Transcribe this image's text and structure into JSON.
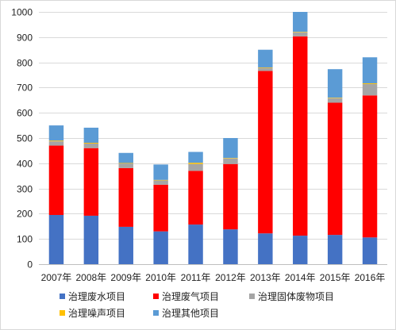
{
  "chart_data": {
    "type": "bar",
    "stacked": true,
    "categories": [
      "2007年",
      "2008年",
      "2009年",
      "2010年",
      "2011年",
      "2012年",
      "2013年",
      "2014年",
      "2015年",
      "2016年"
    ],
    "ylim": [
      0,
      1000
    ],
    "yticks": [
      0,
      100,
      200,
      300,
      400,
      500,
      600,
      700,
      800,
      900,
      1000
    ],
    "grid": true,
    "legend_position": "bottom",
    "series": [
      {
        "name": "治理废水项目",
        "color": "#4472c4",
        "values": [
          195,
          192,
          148,
          130,
          157,
          138,
          122,
          113,
          116,
          106
        ]
      },
      {
        "name": "治理废气项目",
        "color": "#ff0000",
        "values": [
          275,
          268,
          233,
          185,
          213,
          259,
          644,
          790,
          524,
          563
        ]
      },
      {
        "name": "治理固体废物项目",
        "color": "#a5a5a5",
        "values": [
          17,
          18,
          18,
          17,
          27,
          22,
          12,
          16,
          18,
          45
        ]
      },
      {
        "name": "治理噪声项目",
        "color": "#ffc000",
        "values": [
          3,
          3,
          2,
          2,
          5,
          2,
          2,
          2,
          2,
          3
        ]
      },
      {
        "name": "治理其他项目",
        "color": "#5b9bd5",
        "values": [
          60,
          60,
          40,
          61,
          43,
          79,
          70,
          79,
          113,
          103
        ]
      }
    ]
  }
}
